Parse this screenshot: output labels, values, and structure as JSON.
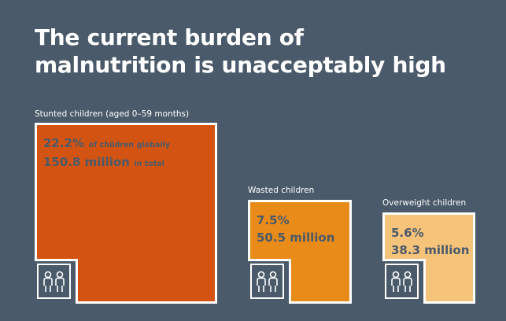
{
  "header": {
    "title_line1": "The current burden of",
    "title_line2": "malnutrition is unacceptably high"
  },
  "chart_data": {
    "type": "area",
    "categories": [
      "Stunted children (aged 0–59 months)",
      "Wasted children",
      "Overweight children"
    ],
    "items": [
      {
        "label": "Stunted children (aged 0–59 months)",
        "percent": 22.2,
        "millions": 150.8,
        "percent_text": "22.2%",
        "percent_suffix": "of children globally",
        "total_text": "150.8 million",
        "total_suffix": "in total",
        "color": "#d35412"
      },
      {
        "label": "Wasted children",
        "percent": 7.5,
        "millions": 50.5,
        "percent_text": "7.5%",
        "total_text": "50.5 million",
        "color": "#e98b18"
      },
      {
        "label": "Overweight children",
        "percent": 5.6,
        "millions": 38.3,
        "percent_text": "5.6%",
        "total_text": "38.3 million",
        "color": "#f6c37a"
      }
    ]
  },
  "icons": {
    "children": "two-children-icon"
  },
  "colors": {
    "background": "#4a5a6a",
    "text_on_box": "#4a5a6a",
    "border": "#ffffff"
  }
}
